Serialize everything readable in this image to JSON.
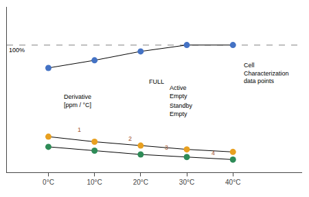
{
  "chart_data": {
    "type": "line",
    "x": [
      0,
      1,
      2,
      3,
      4
    ],
    "xlim": [
      -0.9,
      5.5
    ],
    "xticks": [
      {
        "value": 0,
        "label": "0°C"
      },
      {
        "value": 1,
        "label": "10°C"
      },
      {
        "value": 2,
        "label": "20°C"
      },
      {
        "value": 3,
        "label": "30°C"
      },
      {
        "value": 4,
        "label": "40°C"
      }
    ],
    "ylim": [
      0,
      130
    ],
    "tick_labels": "x",
    "grid": false,
    "series": [
      {
        "color": "#4472C4",
        "values": [
          82,
          88,
          95,
          100,
          100
        ]
      },
      {
        "color": "#E8A020",
        "values": [
          28,
          24,
          21,
          18,
          16
        ]
      },
      {
        "color": "#2E8B57",
        "values": [
          20,
          17,
          14,
          12,
          10
        ]
      }
    ],
    "hlines": [
      {
        "y": 100,
        "color": "#999999",
        "line_style": "dash"
      }
    ],
    "annotations": [
      {
        "text": "100%",
        "x": -0.88,
        "y": 100
      },
      {
        "text": "FULL",
        "x": 2.15,
        "y": 75
      },
      {
        "text": "Derivative\n[ppm / °C]",
        "x": 0.3,
        "y": 63
      },
      {
        "text": "Active\nEmpty",
        "x": 2.6,
        "y": 70
      },
      {
        "text": "Standby\nEmpty",
        "x": 2.6,
        "y": 56
      },
      {
        "text": "Cell\nCharacterization\ndata points",
        "x": 4.2,
        "y": 88
      },
      {
        "text": "1",
        "x": 0.6,
        "y": 37,
        "color": "#A0522D"
      },
      {
        "text": "2",
        "x": 1.7,
        "y": 30,
        "color": "#A0522D"
      },
      {
        "text": "3",
        "x": 2.5,
        "y": 23,
        "color": "#A0522D"
      },
      {
        "text": "4",
        "x": 3.5,
        "y": 19,
        "color": "#A0522D"
      }
    ]
  }
}
